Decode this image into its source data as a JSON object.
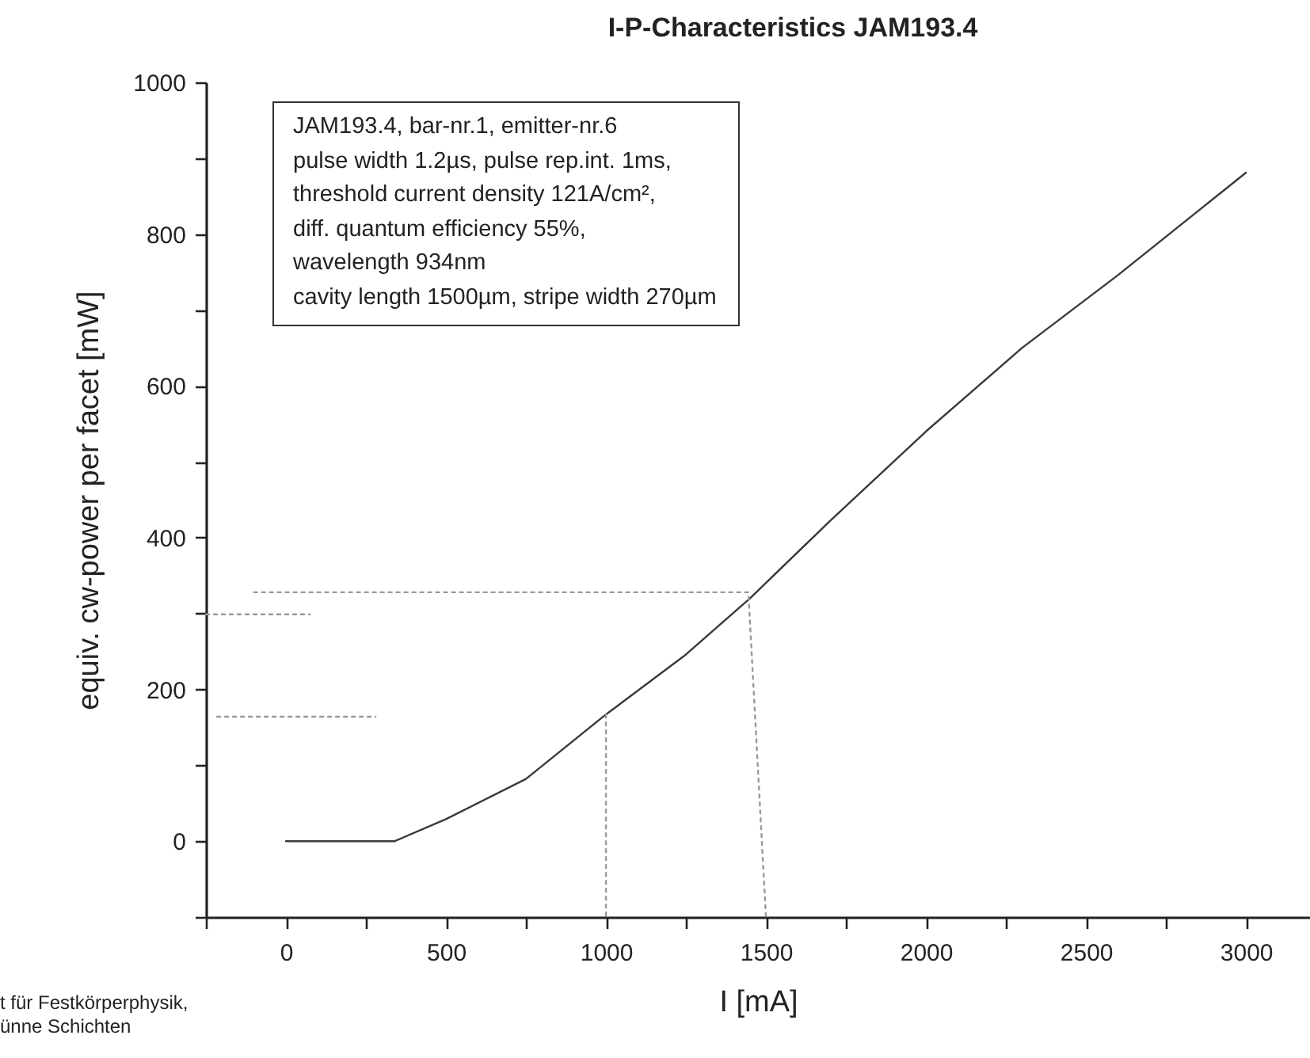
{
  "chart_data": {
    "type": "line",
    "title": "I-P-Characteristics JAM193.4",
    "xlabel": "I [mA]",
    "ylabel": "equiv. cw-power per facet [mW]",
    "annotations": [
      "JAM193.4, bar-nr.1, emitter-nr.6\npulse width 1.2µs, pulse rep.int. 1ms,\nthreshold current density 121A/cm²,\ndiff. quantum efficiency 55%,\nwavelength 934nm\ncavity length 1500µm, stripe width 270µm",
      "t für Festkörperphysik,\nünne Schichten"
    ],
    "series": [
      {
        "color": "#3a3a3a",
        "line_style": "solid",
        "x": [
          0,
          340,
          500,
          750,
          1000,
          1250,
          1450,
          1700,
          2000,
          2300,
          2600,
          3000
        ],
        "values": [
          0,
          0,
          29,
          82,
          167,
          246,
          320,
          422,
          540,
          650,
          746,
          881
        ]
      },
      {
        "color": "#999999",
        "line_style": "dotted",
        "x": [
          -100,
          1445,
          1500
        ],
        "values": [
          328,
          328,
          -100
        ]
      },
      {
        "color": "#999999",
        "line_style": "dotted",
        "x": [
          -250,
          75
        ],
        "values": [
          299,
          299
        ]
      },
      {
        "color": "#999999",
        "line_style": "dotted",
        "x": [
          -215,
          280
        ],
        "values": [
          164,
          164
        ]
      },
      {
        "color": "#999999",
        "line_style": "dotted",
        "x": [
          1000,
          1000
        ],
        "values": [
          167,
          -100
        ]
      }
    ],
    "xlim": [
      -250,
      3200
    ],
    "xticks": [
      {
        "value": -250,
        "label": null
      },
      0,
      {
        "value": 250,
        "label": null
      },
      500,
      {
        "value": 750,
        "label": null
      },
      1000,
      {
        "value": 1250,
        "label": null
      },
      1500,
      {
        "value": 1750,
        "label": null
      },
      2000,
      {
        "value": 2250,
        "label": null
      },
      2500,
      {
        "value": 2750,
        "label": null
      },
      3000
    ],
    "ylim": [
      -100,
      1000
    ],
    "yticks": [
      {
        "value": -100,
        "label": null
      },
      0,
      {
        "value": 100,
        "label": null
      },
      200,
      {
        "value": 300,
        "label": null
      },
      400,
      {
        "value": 500,
        "label": null
      },
      600,
      {
        "value": 700,
        "label": null
      },
      800,
      {
        "value": 900,
        "label": null
      },
      1000
    ],
    "grid": false,
    "legend": false,
    "marker": "none"
  }
}
